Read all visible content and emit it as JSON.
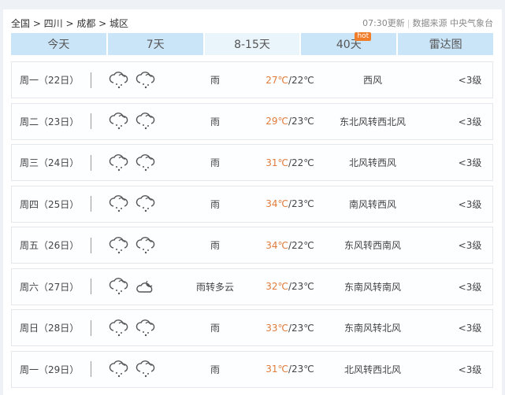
{
  "breadcrumb": "全国 > 四川 > 成都 > 城区",
  "update_time": "07:30更新",
  "source": "数据来源 中央气象台",
  "tabs": [
    {
      "label": "今天"
    },
    {
      "label": "7天"
    },
    {
      "label": "8-15天",
      "active": true
    },
    {
      "label": "40天",
      "badge": "hot"
    },
    {
      "label": "雷达图"
    }
  ],
  "colors": {
    "tab_bg": "#cbe5f8",
    "tab_active": "#eaf4fb",
    "high_temp": "#e07b39",
    "hot_badge": "#f07d2a"
  },
  "days": [
    {
      "day": "周一（22日）",
      "icons": [
        "rain-icon",
        "rain-icon"
      ],
      "desc": "雨",
      "high": "27℃",
      "low": "/22℃",
      "wind": "西风",
      "level": "<3级"
    },
    {
      "day": "周二（23日）",
      "icons": [
        "rain-icon",
        "rain-icon"
      ],
      "desc": "雨",
      "high": "29℃",
      "low": "/23℃",
      "wind": "东北风转西北风",
      "level": "<3级"
    },
    {
      "day": "周三（24日）",
      "icons": [
        "rain-icon",
        "rain-icon"
      ],
      "desc": "雨",
      "high": "31℃",
      "low": "/22℃",
      "wind": "北风转西风",
      "level": "<3级"
    },
    {
      "day": "周四（25日）",
      "icons": [
        "rain-icon",
        "rain-icon"
      ],
      "desc": "雨",
      "high": "34℃",
      "low": "/23℃",
      "wind": "南风转西风",
      "level": "<3级"
    },
    {
      "day": "周五（26日）",
      "icons": [
        "rain-icon",
        "rain-icon"
      ],
      "desc": "雨",
      "high": "34℃",
      "low": "/22℃",
      "wind": "东风转西南风",
      "level": "<3级"
    },
    {
      "day": "周六（27日）",
      "icons": [
        "rain-icon",
        "cloudy-night-icon"
      ],
      "desc": "雨转多云",
      "high": "32℃",
      "low": "/23℃",
      "wind": "东南风转南风",
      "level": "<3级"
    },
    {
      "day": "周日（28日）",
      "icons": [
        "rain-icon",
        "rain-icon"
      ],
      "desc": "雨",
      "high": "33℃",
      "low": "/23℃",
      "wind": "东南风转北风",
      "level": "<3级"
    },
    {
      "day": "周一（29日）",
      "icons": [
        "rain-icon",
        "rain-icon"
      ],
      "desc": "雨",
      "high": "31℃",
      "low": "/23℃",
      "wind": "北风转西北风",
      "level": "<3级"
    }
  ]
}
